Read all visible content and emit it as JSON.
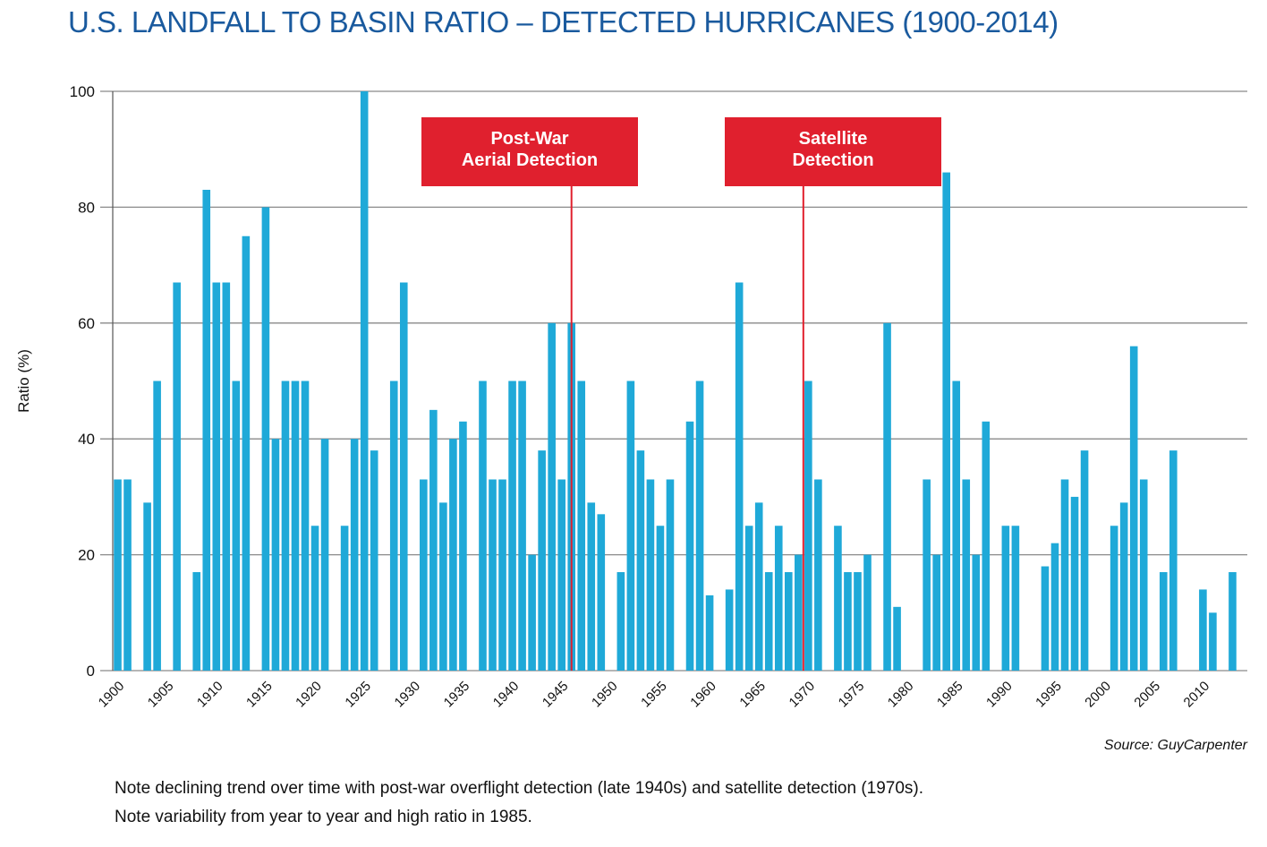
{
  "chart_data": {
    "type": "bar",
    "title": "U.S. LANDFALL TO BASIN RATIO – DETECTED HURRICANES (1900-2014)",
    "ylabel": "Ratio (%)",
    "xlabel": "",
    "ylim": [
      0,
      100
    ],
    "yticks": [
      0,
      20,
      40,
      60,
      80,
      100
    ],
    "xtick_labels": [
      "1900",
      "1905",
      "1910",
      "1915",
      "1920",
      "1925",
      "1930",
      "1935",
      "1940",
      "1945",
      "1950",
      "1955",
      "1960",
      "1965",
      "1970",
      "1975",
      "1980",
      "1985",
      "1990",
      "1995",
      "2000",
      "2005",
      "2010"
    ],
    "grid": true,
    "bar_color": "#1fa9d8",
    "years": [
      1900,
      1901,
      1902,
      1903,
      1904,
      1905,
      1906,
      1907,
      1908,
      1909,
      1910,
      1911,
      1912,
      1913,
      1914,
      1915,
      1916,
      1917,
      1918,
      1919,
      1920,
      1921,
      1922,
      1923,
      1924,
      1925,
      1926,
      1927,
      1928,
      1929,
      1930,
      1931,
      1932,
      1933,
      1934,
      1935,
      1936,
      1937,
      1938,
      1939,
      1940,
      1941,
      1942,
      1943,
      1944,
      1945,
      1946,
      1947,
      1948,
      1949,
      1950,
      1951,
      1952,
      1953,
      1954,
      1955,
      1956,
      1957,
      1958,
      1959,
      1960,
      1961,
      1962,
      1963,
      1964,
      1965,
      1966,
      1967,
      1968,
      1969,
      1970,
      1971,
      1972,
      1973,
      1974,
      1975,
      1976,
      1977,
      1978,
      1979,
      1980,
      1981,
      1982,
      1983,
      1984,
      1985,
      1986,
      1987,
      1988,
      1989,
      1990,
      1991,
      1992,
      1993,
      1994,
      1995,
      1996,
      1997,
      1998,
      1999,
      2000,
      2001,
      2002,
      2003,
      2004,
      2005,
      2006,
      2007,
      2008,
      2009,
      2010,
      2011,
      2012,
      2013,
      2014
    ],
    "values": [
      33,
      33,
      0,
      29,
      50,
      0,
      67,
      0,
      17,
      83,
      67,
      67,
      50,
      75,
      0,
      80,
      40,
      50,
      50,
      50,
      25,
      40,
      0,
      25,
      40,
      100,
      38,
      0,
      50,
      67,
      0,
      33,
      45,
      29,
      40,
      43,
      0,
      50,
      33,
      33,
      50,
      50,
      20,
      38,
      60,
      33,
      60,
      50,
      29,
      27,
      0,
      17,
      50,
      38,
      33,
      25,
      33,
      0,
      43,
      50,
      13,
      0,
      14,
      67,
      25,
      29,
      17,
      25,
      17,
      20,
      50,
      33,
      0,
      25,
      17,
      17,
      20,
      0,
      60,
      11,
      0,
      0,
      33,
      20,
      86,
      50,
      33,
      20,
      43,
      0,
      25,
      25,
      0,
      0,
      18,
      22,
      33,
      30,
      38,
      0,
      0,
      25,
      29,
      56,
      33,
      0,
      17,
      38,
      0,
      0,
      14,
      10,
      0,
      17,
      0
    ],
    "annotations": [
      {
        "label": "Post-War\nAerial Detection",
        "year": 1946,
        "color": "#e0202e"
      },
      {
        "label": "Satellite\nDetection",
        "year": 1969.5,
        "color": "#e0202e"
      }
    ]
  },
  "source": "Source: GuyCarpenter",
  "notes": [
    "Note declining trend over time with post-war overflight detection (late 1940s) and satellite detection (1970s).",
    "Note variability from year to year and high ratio in 1985."
  ]
}
